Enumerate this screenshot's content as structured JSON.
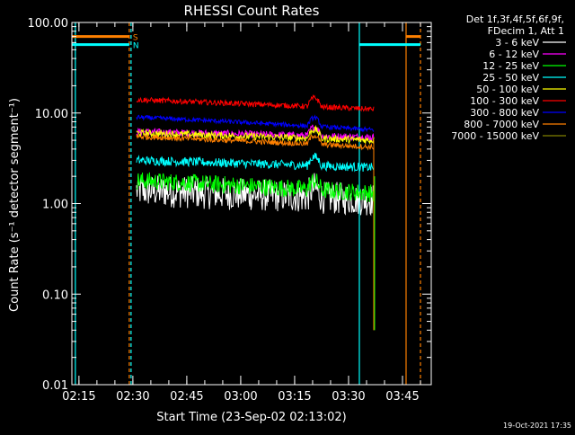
{
  "chart_data": {
    "type": "line",
    "title": "RHESSI Count Rates",
    "xlabel": "Start Time (23-Sep-02 02:13:02)",
    "ylabel": "Count Rate (s⁻¹ detector segment⁻¹)",
    "yscale": "log",
    "ylim": [
      0.01,
      100
    ],
    "xlim": [
      "02:13:02",
      "03:53:00"
    ],
    "x_ticks": [
      "02:15",
      "02:30",
      "02:45",
      "03:00",
      "03:15",
      "03:30",
      "03:45"
    ],
    "y_ticks": [
      "0.01",
      "0.10",
      "1.00",
      "10.00",
      "100.00"
    ],
    "grid": false,
    "legend_position": "top-right",
    "legend_header": [
      "Det 1f,3f,4f,5f,6f,9f,",
      "FDecim 1, Att 1"
    ],
    "data_start": "02:31:00",
    "data_end": "03:37:00",
    "series": [
      {
        "name": "3 - 6 keV",
        "color": "#ffffff",
        "values_start_end": [
          1.4,
          1.1
        ],
        "noise": 0.18
      },
      {
        "name": "6 - 12 keV",
        "color": "#ff00ff",
        "values_start_end": [
          6.2,
          5.4
        ],
        "noise": 0.04
      },
      {
        "name": "12 - 25 keV",
        "color": "#00ff00",
        "values_start_end": [
          1.8,
          1.3
        ],
        "noise": 0.1
      },
      {
        "name": "25 - 50 keV",
        "color": "#00ffff",
        "values_start_end": [
          3.0,
          2.5
        ],
        "noise": 0.05
      },
      {
        "name": "50 - 100 keV",
        "color": "#ffff00",
        "values_start_end": [
          6.0,
          5.0
        ],
        "noise": 0.04
      },
      {
        "name": "100 - 300 keV",
        "color": "#ff0000",
        "values_start_end": [
          14.0,
          11.0
        ],
        "noise": 0.03
      },
      {
        "name": "300 - 800 keV",
        "color": "#0000ff",
        "values_start_end": [
          9.0,
          6.5
        ],
        "noise": 0.025
      },
      {
        "name": "800 - 7000 keV",
        "color": "#ff8000",
        "values_start_end": [
          5.5,
          4.2
        ],
        "noise": 0.03
      },
      {
        "name": "7000 - 15000 keV",
        "color": "#808000",
        "values_start_end": [
          0,
          0
        ],
        "noise": 0
      }
    ],
    "flags": [
      {
        "label": "S",
        "color": "#ff8000",
        "value": 70
      },
      {
        "label": "N",
        "color": "#00ffff",
        "value": 57
      }
    ],
    "vertical_markers": [
      {
        "time": "02:14:00",
        "color": "#00ffff",
        "style": "solid"
      },
      {
        "time": "02:29:00",
        "color": "#ff8000",
        "style": "dashed"
      },
      {
        "time": "02:29:30",
        "color": "#00ffff",
        "style": "dashed"
      },
      {
        "time": "03:33:00",
        "color": "#00ffff",
        "style": "solid"
      },
      {
        "time": "03:46:00",
        "color": "#ff8000",
        "style": "solid"
      },
      {
        "time": "03:50:00",
        "color": "#ff8000",
        "style": "dashed"
      }
    ],
    "footer_timestamp": "19-Oct-2021 17:35"
  }
}
